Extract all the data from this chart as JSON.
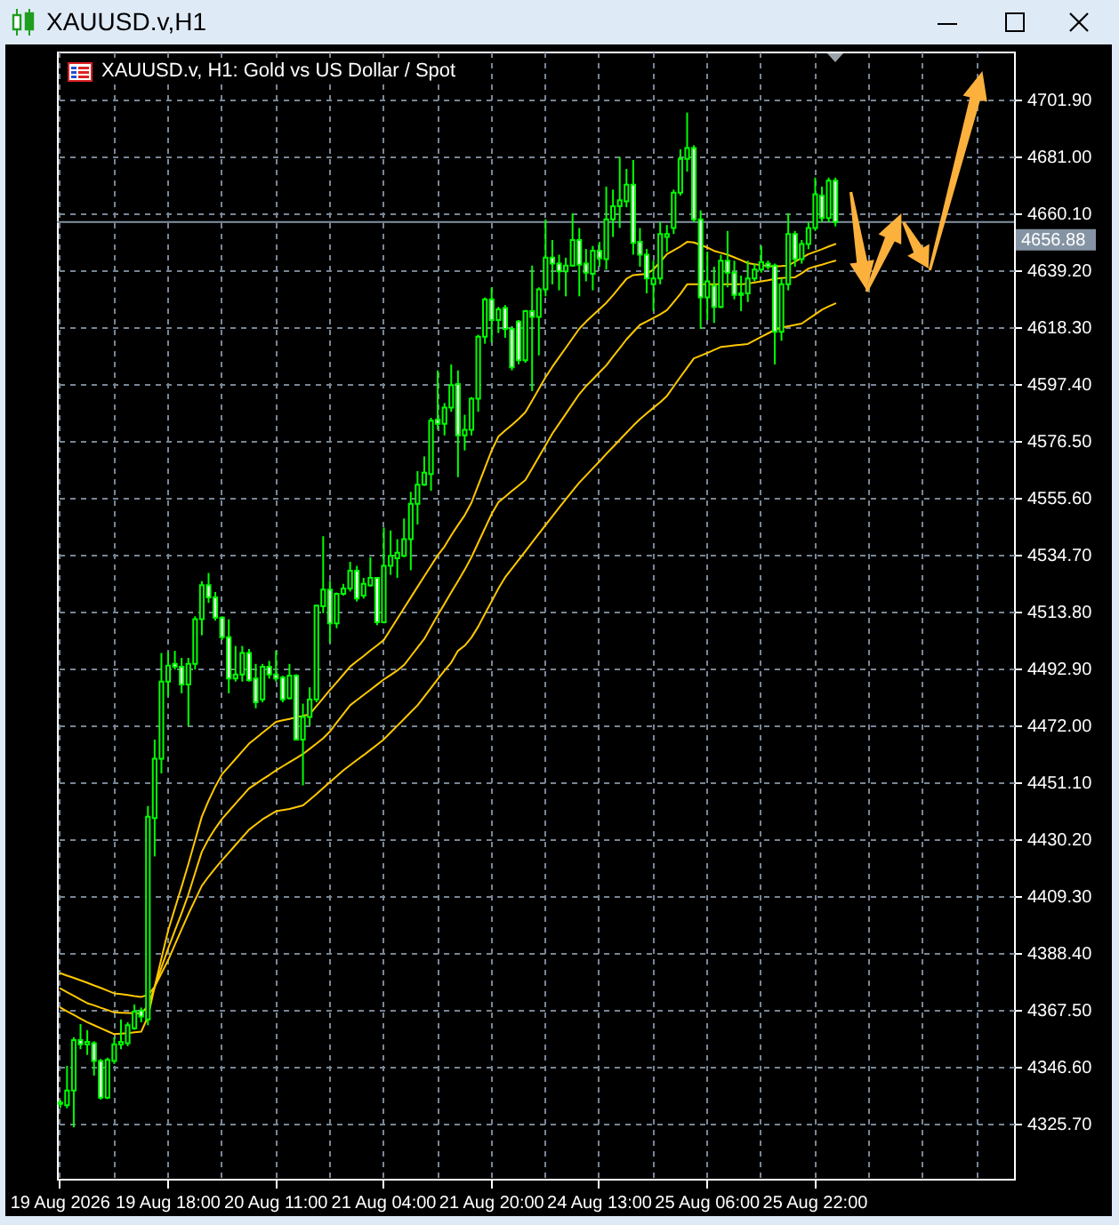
{
  "chart_data": {
    "type": "candlestick",
    "title": "XAUUSD.v,H1",
    "subtitle": "XAUUSD.v, H1: Gold vs US Dollar / Spot",
    "categories": [
      "19 Aug 2026",
      null,
      null,
      null,
      null,
      null,
      null,
      null,
      null,
      null,
      null,
      null,
      null,
      null,
      null,
      null,
      "19 Aug 18:00",
      null,
      null,
      null,
      null,
      null,
      null,
      null,
      null,
      null,
      null,
      null,
      null,
      null,
      null,
      null,
      "20 Aug 11:00",
      null,
      null,
      null,
      null,
      null,
      null,
      null,
      null,
      null,
      null,
      null,
      null,
      null,
      null,
      null,
      "21 Aug 04:00",
      null,
      null,
      null,
      null,
      null,
      null,
      null,
      null,
      null,
      null,
      null,
      null,
      null,
      null,
      null,
      "21 Aug 20:00",
      null,
      null,
      null,
      null,
      null,
      null,
      null,
      null,
      null,
      null,
      null,
      null,
      null,
      null,
      null,
      "24 Aug 13:00",
      null,
      null,
      null,
      null,
      null,
      null,
      null,
      null,
      null,
      null,
      null,
      null,
      null,
      null,
      null,
      "25 Aug 06:00",
      null,
      null,
      null,
      null,
      null,
      null,
      null,
      null,
      null,
      null,
      null,
      null,
      null,
      null,
      null,
      "25 Aug 22:00",
      null,
      null,
      null,
      null,
      null,
      null,
      null,
      null,
      null,
      null,
      null,
      null,
      null,
      null,
      null,
      null,
      null,
      null,
      null,
      null,
      null,
      null,
      null,
      null,
      null,
      null,
      null,
      null,
      null
    ],
    "color": "#00ff00",
    "ohlc": [
      [
        4333.0,
        4334.5,
        4331.5,
        4333.5
      ],
      [
        4332.5,
        4347.0,
        4331.4,
        4337.9
      ],
      [
        4337.9,
        4357.5,
        4324.4,
        4356.4
      ],
      [
        4356.4,
        4362.3,
        4353.1,
        4354.9
      ],
      [
        4354.9,
        4360.1,
        4351.0,
        4355.8
      ],
      [
        4355.3,
        4356.0,
        4343.4,
        4348.8
      ],
      [
        4348.8,
        4349.5,
        4334.6,
        4335.3
      ],
      [
        4335.3,
        4350.0,
        4334.8,
        4349.2
      ],
      [
        4348.8,
        4357.5,
        4347.7,
        4354.9
      ],
      [
        4354.9,
        4364.0,
        4353.1,
        4355.8
      ],
      [
        4355.3,
        4363.0,
        4354.2,
        4361.9
      ],
      [
        4360.8,
        4369.5,
        4360.2,
        4366.9
      ],
      [
        4367.3,
        4368.4,
        4363.0,
        4365.1
      ],
      [
        4364.0,
        4442.4,
        4361.9,
        4438.5
      ],
      [
        4438.0,
        4466.8,
        4423.9,
        4459.8
      ],
      [
        4459.8,
        4498.6,
        4454.4,
        4488.1
      ],
      [
        4488.1,
        4499.0,
        4482.7,
        4494.0
      ],
      [
        4494.6,
        4499.4,
        4492.5,
        4493.6
      ],
      [
        4493.6,
        4496.8,
        4483.8,
        4487.0
      ],
      [
        4487.0,
        4496.8,
        4471.8,
        4494.6
      ],
      [
        4494.6,
        4512.1,
        4492.5,
        4511.0
      ],
      [
        4511.0,
        4525.0,
        4505.1,
        4523.5
      ],
      [
        4523.5,
        4528.0,
        4517.0,
        4519.0
      ],
      [
        4519.0,
        4521.0,
        4510.5,
        4511.6
      ],
      [
        4511.6,
        4512.1,
        4503.4,
        4504.4
      ],
      [
        4504.4,
        4511.0,
        4483.8,
        4489.2
      ],
      [
        4489.2,
        4501.2,
        4488.1,
        4490.7
      ],
      [
        4490.7,
        4501.2,
        4488.1,
        4498.6
      ],
      [
        4498.6,
        4500.1,
        4488.1,
        4488.6
      ],
      [
        4489.2,
        4494.6,
        4478.3,
        4480.5
      ],
      [
        4481.6,
        4494.6,
        4480.5,
        4493.6
      ],
      [
        4493.6,
        4495.7,
        4489.2,
        4490.7
      ],
      [
        4490.7,
        4499.5,
        4488.1,
        4489.2
      ],
      [
        4489.6,
        4490.3,
        4480.5,
        4481.6
      ],
      [
        4482.0,
        4494.6,
        4481.6,
        4490.3
      ],
      [
        4490.3,
        4490.8,
        4466.5,
        4466.8
      ],
      [
        4466.8,
        4480.0,
        4450.0,
        4475.1
      ],
      [
        4475.1,
        4486.0,
        4472.0,
        4481.6
      ],
      [
        4481.6,
        4516.4,
        4480.5,
        4516.0
      ],
      [
        4515.8,
        4541.5,
        4513.2,
        4521.9
      ],
      [
        4521.9,
        4525.1,
        4502.3,
        4509.5
      ],
      [
        4509.5,
        4520.8,
        4507.7,
        4520.3
      ],
      [
        4520.3,
        4524.0,
        4519.7,
        4522.3
      ],
      [
        4522.3,
        4532.1,
        4521.2,
        4528.8
      ],
      [
        4528.8,
        4530.6,
        4517.5,
        4518.6
      ],
      [
        4519.7,
        4526.2,
        4518.6,
        4524.0
      ],
      [
        4523.4,
        4533.8,
        4523.0,
        4526.2
      ],
      [
        4526.2,
        4526.5,
        4508.8,
        4509.9
      ],
      [
        4509.9,
        4544.7,
        4509.5,
        4530.6
      ],
      [
        4530.6,
        4543.6,
        4527.3,
        4534.3
      ],
      [
        4533.4,
        4540.4,
        4526.2,
        4535.4
      ],
      [
        4534.3,
        4548.0,
        4533.8,
        4540.4
      ],
      [
        4540.4,
        4557.8,
        4529.0,
        4553.4
      ],
      [
        4553.4,
        4565.4,
        4545.8,
        4560.4
      ],
      [
        4560.4,
        4570.8,
        4560.0,
        4564.8
      ],
      [
        4564.3,
        4585.0,
        4558.2,
        4583.9
      ],
      [
        4584.3,
        4602.4,
        4580.6,
        4582.8
      ],
      [
        4582.8,
        4590.4,
        4578.5,
        4588.7
      ],
      [
        4588.7,
        4604.6,
        4587.2,
        4597.0
      ],
      [
        4597.4,
        4602.4,
        4563.2,
        4578.5
      ],
      [
        4578.5,
        4586.1,
        4573.0,
        4580.6
      ],
      [
        4580.6,
        4592.6,
        4578.5,
        4592.0
      ],
      [
        4592.0,
        4615.5,
        4587.2,
        4614.8
      ],
      [
        4614.8,
        4629.2,
        4612.2,
        4628.5
      ],
      [
        4628.5,
        4632.9,
        4612.6,
        4620.9
      ],
      [
        4620.9,
        4625.7,
        4616.1,
        4624.8
      ],
      [
        4625.3,
        4626.4,
        4614.4,
        4617.6
      ],
      [
        4617.6,
        4618.7,
        4602.4,
        4603.5
      ],
      [
        4620.3,
        4620.9,
        4604.6,
        4606.1
      ],
      [
        4606.1,
        4624.6,
        4605.2,
        4624.2
      ],
      [
        4624.2,
        4640.9,
        4594.8,
        4622.0
      ],
      [
        4622.0,
        4632.9,
        4607.9,
        4632.2
      ],
      [
        4632.2,
        4657.9,
        4629.6,
        4643.8
      ],
      [
        4643.8,
        4650.3,
        4634.0,
        4641.6
      ],
      [
        4641.6,
        4644.9,
        4631.8,
        4638.8
      ],
      [
        4638.8,
        4643.8,
        4629.6,
        4640.9
      ],
      [
        4640.9,
        4660.1,
        4640.5,
        4650.3
      ],
      [
        4650.3,
        4654.7,
        4629.6,
        4641.2
      ],
      [
        4641.6,
        4647.0,
        4635.1,
        4638.3
      ],
      [
        4637.9,
        4648.1,
        4631.8,
        4646.4
      ],
      [
        4646.4,
        4649.6,
        4640.5,
        4643.6
      ],
      [
        4643.3,
        4669.9,
        4639.4,
        4657.9
      ],
      [
        4657.9,
        4668.8,
        4651.4,
        4662.7
      ],
      [
        4662.7,
        4680.8,
        4654.7,
        4664.9
      ],
      [
        4664.5,
        4676.4,
        4662.3,
        4670.6
      ],
      [
        4670.6,
        4679.7,
        4644.9,
        4649.2
      ],
      [
        4649.6,
        4654.7,
        4640.5,
        4644.9
      ],
      [
        4644.9,
        4647.0,
        4630.7,
        4636.2
      ],
      [
        4634.0,
        4642.7,
        4624.2,
        4636.2
      ],
      [
        4636.2,
        4656.8,
        4634.0,
        4652.5
      ],
      [
        4651.4,
        4655.8,
        4645.9,
        4652.5
      ],
      [
        4654.7,
        4668.8,
        4652.5,
        4667.7
      ],
      [
        4667.7,
        4683.6,
        4666.6,
        4680.1
      ],
      [
        4680.1,
        4697.1,
        4675.4,
        4684.1
      ],
      [
        4684.1,
        4685.1,
        4656.8,
        4657.9
      ],
      [
        4657.9,
        4661.2,
        4617.6,
        4629.2
      ],
      [
        4629.2,
        4646.0,
        4620.9,
        4635.1
      ],
      [
        4633.5,
        4640.5,
        4619.8,
        4625.7
      ],
      [
        4625.7,
        4644.9,
        4625.3,
        4642.7
      ],
      [
        4642.7,
        4653.6,
        4632.9,
        4638.3
      ],
      [
        4638.3,
        4642.7,
        4628.5,
        4630.1
      ],
      [
        4630.1,
        4637.2,
        4624.2,
        4630.7
      ],
      [
        4630.7,
        4642.7,
        4627.5,
        4636.2
      ],
      [
        4636.2,
        4641.6,
        4635.1,
        4639.4
      ],
      [
        4639.4,
        4648.1,
        4638.3,
        4642.2
      ],
      [
        4641.6,
        4642.7,
        4639.4,
        4640.5
      ],
      [
        4640.9,
        4641.6,
        4604.6,
        4616.6
      ],
      [
        4616.6,
        4636.2,
        4613.3,
        4634.0
      ],
      [
        4634.0,
        4660.1,
        4631.8,
        4652.5
      ],
      [
        4652.5,
        4653.6,
        4640.5,
        4643.3
      ],
      [
        4643.3,
        4650.3,
        4641.6,
        4648.8
      ],
      [
        4648.8,
        4656.8,
        4646.9,
        4654.7
      ],
      [
        4654.7,
        4673.2,
        4653.6,
        4667.1
      ],
      [
        4666.6,
        4669.9,
        4656.8,
        4658.4
      ],
      [
        4658.4,
        4673.2,
        4656.8,
        4672.1
      ],
      [
        4672.1,
        4673.2,
        4655.3,
        4656.88
      ],
      null,
      null,
      null,
      null,
      null,
      null,
      null,
      null,
      null,
      null,
      null,
      null,
      null,
      null,
      null,
      null,
      null,
      null,
      null,
      null,
      null,
      null,
      null,
      null,
      null,
      null
    ],
    "series": [
      {
        "type": "line",
        "color": "#ffc800",
        "values": [
          4368.4,
          4367.0,
          4365.7,
          4364.3,
          4363.0,
          4361.9,
          4360.8,
          4359.7,
          4358.6,
          4358.8,
          4359.0,
          4359.3,
          4359.5,
          4365.0,
          4376.0,
          4386.4,
          4396.7,
          4404.8,
          4412.8,
          4421.1,
          4429.8,
          4438.5,
          4444.4,
          4449.6,
          4454.1,
          4456.9,
          4459.7,
          4462.5,
          4465.3,
          4467.3,
          4469.3,
          4471.3,
          4473.3,
          4473.9,
          4474.4,
          4475.0,
          4475.5,
          4476.1,
          4479.1,
          4482.0,
          4485.0,
          4487.8,
          4490.7,
          4493.6,
          4495.6,
          4497.5,
          4499.5,
          4501.4,
          4503.4,
          4507.3,
          4511.2,
          4515.1,
          4519.0,
          4522.9,
          4526.8,
          4530.6,
          4534.5,
          4537.7,
          4541.8,
          4545.6,
          4549.2,
          4553.8,
          4560.2,
          4566.6,
          4573.0,
          4578.1,
          4580.3,
          4582.4,
          4584.6,
          4587.0,
          4591.3,
          4595.6,
          4599.9,
          4603.7,
          4607.2,
          4610.7,
          4614.2,
          4617.7,
          4620.3,
          4622.6,
          4624.9,
          4627.2,
          4630.0,
          4633.0,
          4636.0,
          4637.4,
          4637.6,
          4637.8,
          4639.5,
          4642.2,
          4645.1,
          4646.5,
          4647.9,
          4649.6,
          4649.4,
          4648.5,
          4647.5,
          4646.3,
          4645.6,
          4644.9,
          4643.9,
          4642.9,
          4641.8,
          4641.4,
          4641.1,
          4640.7,
          4640.6,
          4640.7,
          4640.9,
          4642.3,
          4643.7,
          4645.1,
          4646.0,
          4646.9,
          4647.9,
          4648.8,
          null,
          null,
          null,
          null,
          null,
          null,
          null,
          null,
          null,
          null,
          null,
          null,
          null,
          null,
          null,
          null,
          null,
          null,
          null,
          null,
          null,
          null,
          null,
          null,
          null,
          null
        ]
      },
      {
        "type": "line",
        "color": "#ffc800",
        "values": [
          4375.4,
          4374.0,
          4372.7,
          4371.3,
          4370.0,
          4369.2,
          4368.3,
          4367.5,
          4366.6,
          4366.5,
          4366.4,
          4366.3,
          4366.2,
          4369.0,
          4376.0,
          4383.1,
          4390.1,
          4396.6,
          4403.1,
          4409.9,
          4417.8,
          4425.6,
          4430.3,
          4434.2,
          4437.7,
          4440.5,
          4443.3,
          4446.1,
          4448.9,
          4450.5,
          4452.2,
          4453.8,
          4455.5,
          4457.0,
          4458.5,
          4460.0,
          4461.5,
          4463.4,
          4465.3,
          4467.3,
          4469.8,
          4473.0,
          4476.2,
          4479.4,
          4481.3,
          4483.2,
          4485.1,
          4487.0,
          4488.9,
          4490.5,
          4492.2,
          4494.2,
          4497.4,
          4500.6,
          4503.8,
          4508.2,
          4512.5,
          4516.7,
          4520.9,
          4525.0,
          4529.2,
          4533.8,
          4539.1,
          4544.4,
          4549.7,
          4554.0,
          4556.0,
          4558.1,
          4560.1,
          4562.1,
          4566.4,
          4570.6,
          4574.9,
          4579.2,
          4582.8,
          4586.4,
          4590.1,
          4593.7,
          4596.6,
          4599.1,
          4601.7,
          4604.2,
          4607.5,
          4610.6,
          4613.8,
          4616.5,
          4619.1,
          4620.4,
          4621.7,
          4623.0,
          4624.5,
          4627.5,
          4630.5,
          4634.0,
          4634.0,
          4634.0,
          4634.0,
          4634.0,
          4634.0,
          4634.0,
          4634.0,
          4634.0,
          4634.3,
          4634.7,
          4635.1,
          4635.5,
          4636.0,
          4636.3,
          4636.5,
          4636.6,
          4638.1,
          4639.8,
          4640.6,
          4641.2,
          4642.0,
          4642.7,
          null,
          null,
          null,
          null,
          null,
          null,
          null,
          null,
          null,
          null,
          null,
          null,
          null,
          null,
          null,
          null,
          null,
          null,
          null,
          null,
          null,
          null,
          null,
          null,
          null,
          null
        ]
      },
      {
        "type": "line",
        "color": "#ffc800",
        "values": [
          4381.0,
          4380.1,
          4379.3,
          4378.4,
          4377.5,
          4376.5,
          4375.6,
          4374.6,
          4373.6,
          4373.3,
          4373.0,
          4372.6,
          4372.3,
          4373.0,
          4376.0,
          4380.9,
          4385.8,
          4391.5,
          4397.1,
          4402.7,
          4407.9,
          4413.1,
          4416.5,
          4419.6,
          4422.5,
          4425.3,
          4428.1,
          4430.9,
          4433.7,
          4435.6,
          4437.5,
          4439.0,
          4440.5,
          4440.9,
          4441.3,
          4442.0,
          4442.6,
          4444.7,
          4446.8,
          4449.0,
          4451.2,
          4453.3,
          4455.5,
          4457.4,
          4459.3,
          4461.1,
          4463.0,
          4464.9,
          4466.9,
          4469.4,
          4471.9,
          4474.4,
          4476.9,
          4479.4,
          4482.6,
          4485.8,
          4489.0,
          4492.1,
          4495.1,
          4499.4,
          4501.3,
          4504.3,
          4508.3,
          4513.0,
          4517.6,
          4522.3,
          4526.4,
          4529.6,
          4532.8,
          4536.0,
          4539.2,
          4542.4,
          4545.6,
          4548.8,
          4552.0,
          4555.1,
          4558.2,
          4561.2,
          4563.8,
          4566.4,
          4569.0,
          4571.7,
          4574.3,
          4576.9,
          4579.5,
          4582.1,
          4584.5,
          4586.6,
          4588.7,
          4590.7,
          4593.0,
          4596.5,
          4600.0,
          4603.4,
          4606.8,
          4607.8,
          4608.8,
          4609.9,
          4611.0,
          4611.3,
          4611.6,
          4611.8,
          4612.1,
          4613.4,
          4614.7,
          4616.0,
          4617.3,
          4618.1,
          4618.6,
          4619.1,
          4619.6,
          4621.3,
          4623.0,
          4624.7,
          4625.9,
          4627.0,
          null,
          null,
          null,
          null,
          null,
          null,
          null,
          null,
          null,
          null,
          null,
          null,
          null,
          null,
          null,
          null,
          null,
          null,
          null,
          null,
          null,
          null,
          null,
          null,
          null,
          null
        ]
      }
    ],
    "ylim": [
      4305.5,
      4719.5
    ],
    "yticks": [
      {
        "value": 4325.7,
        "label": "4325.70"
      },
      {
        "value": 4346.6,
        "label": "4346.60"
      },
      {
        "value": 4367.5,
        "label": "4367.50"
      },
      {
        "value": 4388.4,
        "label": "4388.40"
      },
      {
        "value": 4409.3,
        "label": "4409.30"
      },
      {
        "value": 4430.2,
        "label": "4430.20"
      },
      {
        "value": 4451.1,
        "label": "4451.10"
      },
      {
        "value": 4472,
        "label": "4472.00"
      },
      {
        "value": 4492.9,
        "label": "4492.90"
      },
      {
        "value": 4513.8,
        "label": "4513.80"
      },
      {
        "value": 4534.7,
        "label": "4534.70"
      },
      {
        "value": 4555.6,
        "label": "4555.60"
      },
      {
        "value": 4576.5,
        "label": "4576.50"
      },
      {
        "value": 4597.4,
        "label": "4597.40"
      },
      {
        "value": 4618.3,
        "label": "4618.30"
      },
      {
        "value": 4639.2,
        "label": "4639.20"
      },
      {
        "value": 4660.1,
        "label": "4660.10"
      },
      {
        "value": 4681,
        "label": "4681.00"
      },
      {
        "value": 4701.9,
        "label": "4701.90"
      }
    ],
    "grid": true,
    "ref_lines": [
      {
        "axis": "y",
        "value": 4656.88,
        "label": "4656.88",
        "color": "#8494a4"
      }
    ]
  }
}
